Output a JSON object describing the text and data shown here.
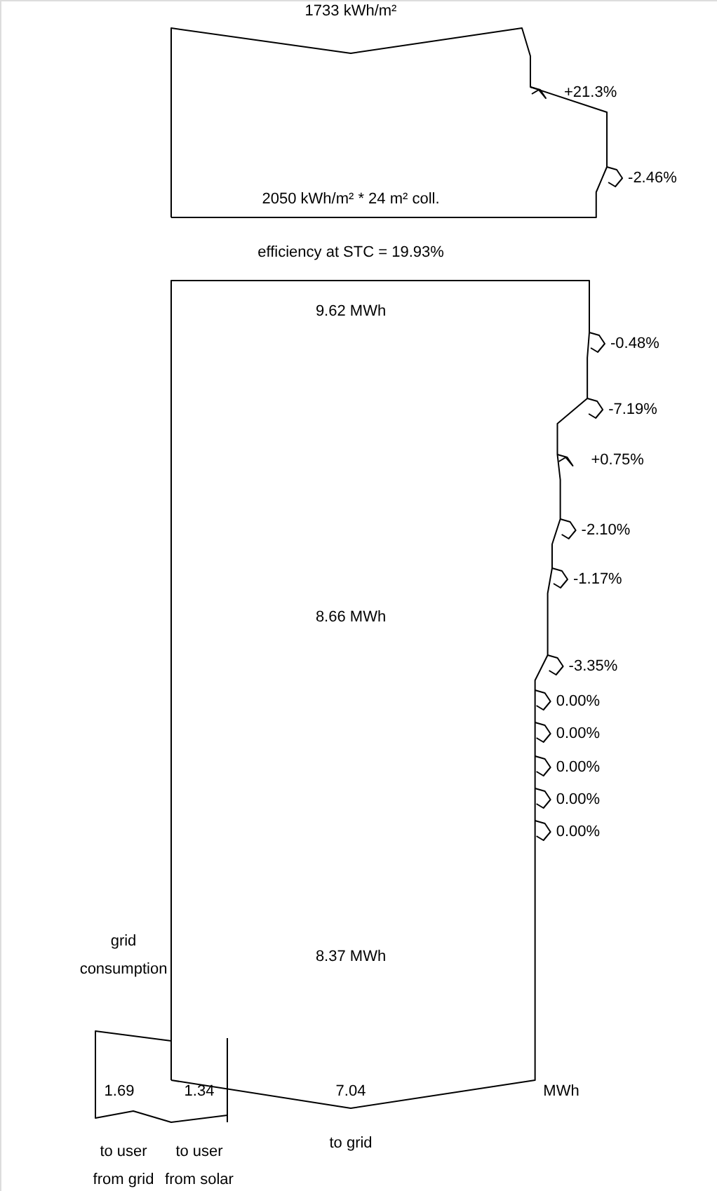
{
  "chart_data": {
    "type": "other",
    "values": [
      21.3,
      -2.46,
      -0.48,
      -7.19,
      0.75,
      -2.1,
      -1.17,
      -3.35,
      0.0,
      0.0,
      0.0,
      0.0,
      0.0
    ],
    "value_labels": [
      "+21.3%",
      "-2.46%",
      "-0.48%",
      "-7.19%",
      "+0.75%",
      "-2.10%",
      "-1.17%",
      "-3.35%",
      "0.00%",
      "0.00%",
      "0.00%",
      "0.00%",
      "0.00%"
    ],
    "annotations": [
      "1733 kWh/m²",
      "2050 kWh/m² * 24 m² coll.",
      "efficiency at STC = 19.93%",
      "9.62 MWh",
      "8.66 MWh",
      "8.37 MWh",
      "grid consumption",
      "1.69",
      "1.34",
      "7.04",
      "MWh",
      "to user from grid",
      "to user from solar",
      "to grid"
    ]
  }
}
